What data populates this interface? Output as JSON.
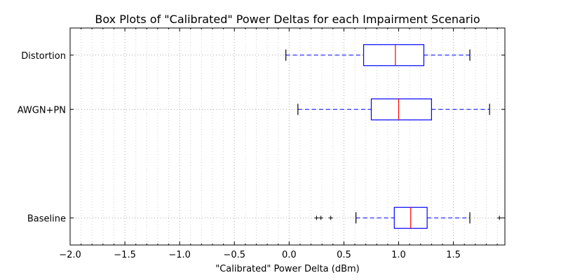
{
  "chart_data": {
    "type": "boxplot",
    "orientation": "horizontal",
    "title": "Box Plots of \"Calibrated\" Power Deltas for each Impairment Scenario",
    "xlabel": "\"Calibrated\" Power Delta (dBm)",
    "ylabel": "",
    "xlim": [
      -2.0,
      1.97
    ],
    "x_ticks": [
      -2.0,
      -1.5,
      -1.0,
      -0.5,
      0.0,
      0.5,
      1.0,
      1.5
    ],
    "x_tick_labels": [
      "−2.0",
      "−1.5",
      "−1.0",
      "−0.5",
      "0.0",
      "0.5",
      "1.0",
      "1.5"
    ],
    "x_minor_step": 0.1,
    "grid": true,
    "categories": [
      "Distortion",
      "AWGN+PN",
      "Baseline"
    ],
    "category_positions": [
      3,
      2,
      0
    ],
    "ylim": [
      -0.5,
      3.5
    ],
    "boxes": [
      {
        "label": "Distortion",
        "whisker_low": -0.03,
        "q1": 0.68,
        "median": 0.97,
        "q3": 1.23,
        "whisker_high": 1.65,
        "fliers": []
      },
      {
        "label": "AWGN+PN",
        "whisker_low": 0.08,
        "q1": 0.75,
        "median": 1.0,
        "q3": 1.3,
        "whisker_high": 1.83,
        "fliers": []
      },
      {
        "label": "Baseline",
        "whisker_low": 0.61,
        "q1": 0.96,
        "median": 1.11,
        "q3": 1.26,
        "whisker_high": 1.65,
        "fliers": [
          0.25,
          0.29,
          0.38,
          1.92
        ]
      }
    ],
    "colors": {
      "box": "#0000ff",
      "whisker": "#0000ff",
      "median": "#ff0000",
      "cap": "#000000",
      "flier": "#000000",
      "grid": "#aaaaaa"
    }
  }
}
